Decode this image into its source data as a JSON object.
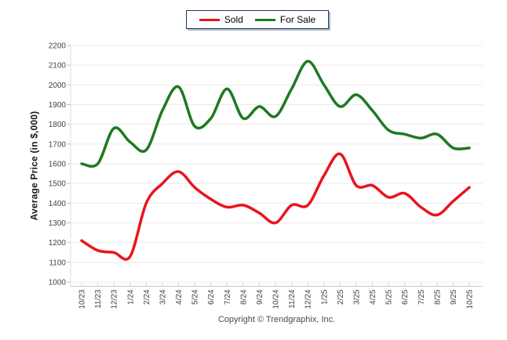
{
  "legend": {
    "position": "top-center",
    "items": [
      {
        "label": "Sold"
      },
      {
        "label": "For Sale"
      }
    ]
  },
  "footer": {
    "copyright": "Copyright © Trendgraphix, Inc."
  },
  "chart_data": {
    "type": "line",
    "title": "",
    "xlabel": "",
    "ylabel": "Average Price (in $,000)",
    "x": [
      "10/23",
      "11/23",
      "12/23",
      "1/24",
      "2/24",
      "3/24",
      "4/24",
      "5/24",
      "6/24",
      "7/24",
      "8/24",
      "9/24",
      "10/24",
      "11/24",
      "12/24",
      "1/25",
      "2/25",
      "3/25",
      "4/25",
      "5/25",
      "6/25",
      "7/25",
      "8/25",
      "9/25",
      "10/25"
    ],
    "series": [
      {
        "name": "Sold",
        "color": "#e9141d",
        "values": [
          1210,
          1160,
          1150,
          1130,
          1400,
          1500,
          1560,
          1480,
          1420,
          1380,
          1390,
          1350,
          1300,
          1390,
          1390,
          1540,
          1650,
          1490,
          1490,
          1430,
          1450,
          1380,
          1340,
          1410,
          1480
        ]
      },
      {
        "name": "For Sale",
        "color": "#1d7a1f",
        "values": [
          1600,
          1600,
          1780,
          1710,
          1670,
          1870,
          1990,
          1790,
          1830,
          1980,
          1830,
          1890,
          1840,
          1980,
          2120,
          2000,
          1890,
          1950,
          1870,
          1770,
          1750,
          1730,
          1750,
          1680,
          1680
        ]
      }
    ],
    "ylim": [
      1000,
      2200
    ],
    "yticks": [
      1000,
      1100,
      1200,
      1300,
      1400,
      1500,
      1600,
      1700,
      1800,
      1900,
      2000,
      2100,
      2200
    ],
    "grid": true,
    "curve": "smooth",
    "legend_position": "top-center"
  },
  "colors": {
    "gridline": "#e9e9e9",
    "axis_line": "#c9c9c9",
    "left_axis_line": "#dedede",
    "y_tick": "#a5c6e3",
    "x_tick": "#c6cfd8",
    "tick_label": "#414150",
    "axis_title": "#17171f",
    "legend_border": "#1d3b63",
    "legend_shadow": "#aeb8c6",
    "copyright": "#4a4a4a"
  }
}
